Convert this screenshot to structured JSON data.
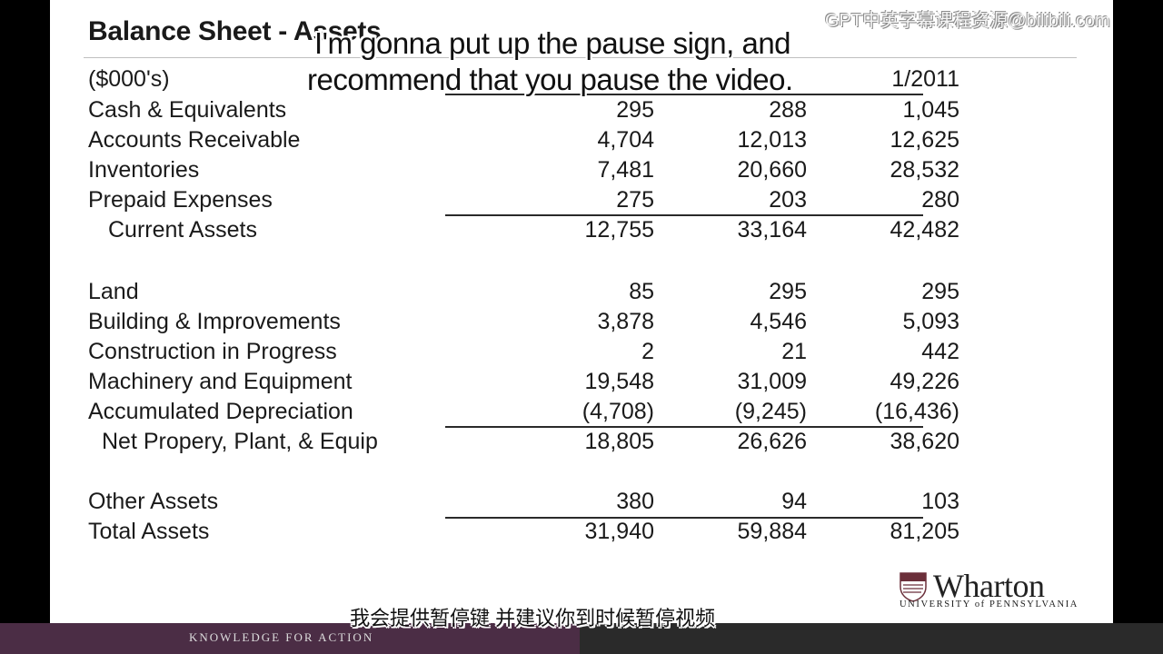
{
  "slide": {
    "title": "Balance Sheet - Assets",
    "units_label": "($000's)",
    "year_header_visible": "1/2011",
    "rows": [
      {
        "label": "Cash & Equivalents",
        "v1": "295",
        "v2": "288",
        "v3": "1,045"
      },
      {
        "label": "Accounts Receivable",
        "v1": "4,704",
        "v2": "12,013",
        "v3": "12,625"
      },
      {
        "label": "Inventories",
        "v1": "7,481",
        "v2": "20,660",
        "v3": "28,532"
      },
      {
        "label": "Prepaid Expenses",
        "v1": "275",
        "v2": "203",
        "v3": "280"
      },
      {
        "label": "Current Assets",
        "v1": "12,755",
        "v2": "33,164",
        "v3": "42,482"
      },
      {
        "label": "Land",
        "v1": "85",
        "v2": "295",
        "v3": "295"
      },
      {
        "label": "Building & Improvements",
        "v1": "3,878",
        "v2": "4,546",
        "v3": "5,093"
      },
      {
        "label": "Construction in Progress",
        "v1": "2",
        "v2": "21",
        "v3": "442"
      },
      {
        "label": "Machinery and Equipment",
        "v1": "19,548",
        "v2": "31,009",
        "v3": "49,226"
      },
      {
        "label": "Accumulated Depreciation",
        "v1": "(4,708)",
        "v2": "(9,245)",
        "v3": "(16,436)"
      },
      {
        "label": "Net Propery, Plant, & Equip",
        "v1": "18,805",
        "v2": "26,626",
        "v3": "38,620"
      },
      {
        "label": "Other Assets",
        "v1": "380",
        "v2": "94",
        "v3": "103"
      },
      {
        "label": "Total Assets",
        "v1": "31,940",
        "v2": "59,884",
        "v3": "81,205"
      }
    ]
  },
  "logo": {
    "wordmark": "Wharton",
    "university": "UNIVERSITY of PENNSYLVANIA"
  },
  "footer": {
    "tagline": "KNOWLEDGE FOR ACTION"
  },
  "subtitles": {
    "line1": "I'm gonna put up the pause sign, and",
    "line2": "recommend that you pause the video.",
    "chinese": "我会提供暂停键 并建议你到时候暂停视频"
  },
  "watermark": "GPT中英字幕课程资源@bilibili.com"
}
